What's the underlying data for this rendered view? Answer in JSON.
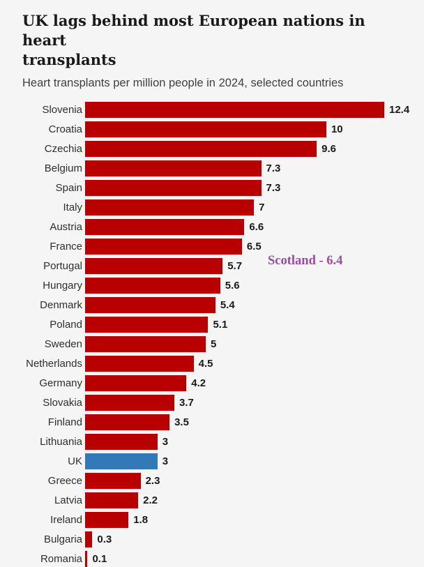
{
  "header": {
    "title": "UK lags behind most European nations in heart transplants",
    "title_lines": [
      "UK lags behind most European nations in heart",
      "transplants"
    ],
    "subtitle": "Heart transplants per million people in 2024, selected countries"
  },
  "annotation": {
    "text": "Scotland - 6.4",
    "color": "#9b4ba4"
  },
  "colors": {
    "bar": "#b80000",
    "highlight_bar": "#3379b7",
    "background": "#f5f5f5",
    "title_text": "#1a1a1a",
    "subtitle_text": "#404040",
    "value_text": "#1a1a1a"
  },
  "chart_data": {
    "type": "bar",
    "orientation": "horizontal",
    "title": "UK lags behind most European nations in heart transplants",
    "subtitle": "Heart transplants per million people in 2024, selected countries",
    "xlabel": "",
    "ylabel": "",
    "xlim": [
      0,
      12.4
    ],
    "grid": false,
    "legend": false,
    "value_labels_shown": true,
    "categories": [
      "Slovenia",
      "Croatia",
      "Czechia",
      "Belgium",
      "Spain",
      "Italy",
      "Austria",
      "France",
      "Portugal",
      "Hungary",
      "Denmark",
      "Poland",
      "Sweden",
      "Netherlands",
      "Germany",
      "Slovakia",
      "Finland",
      "Lithuania",
      "UK",
      "Greece",
      "Latvia",
      "Ireland",
      "Bulgaria",
      "Romania"
    ],
    "values": [
      12.4,
      10,
      9.6,
      7.3,
      7.3,
      7,
      6.6,
      6.5,
      5.7,
      5.6,
      5.4,
      5.1,
      5,
      4.5,
      4.2,
      3.7,
      3.5,
      3,
      3,
      2.3,
      2.2,
      1.8,
      0.3,
      0.1
    ],
    "highlight_category": "UK",
    "annotation": {
      "label": "Scotland",
      "value": 6.4
    }
  }
}
